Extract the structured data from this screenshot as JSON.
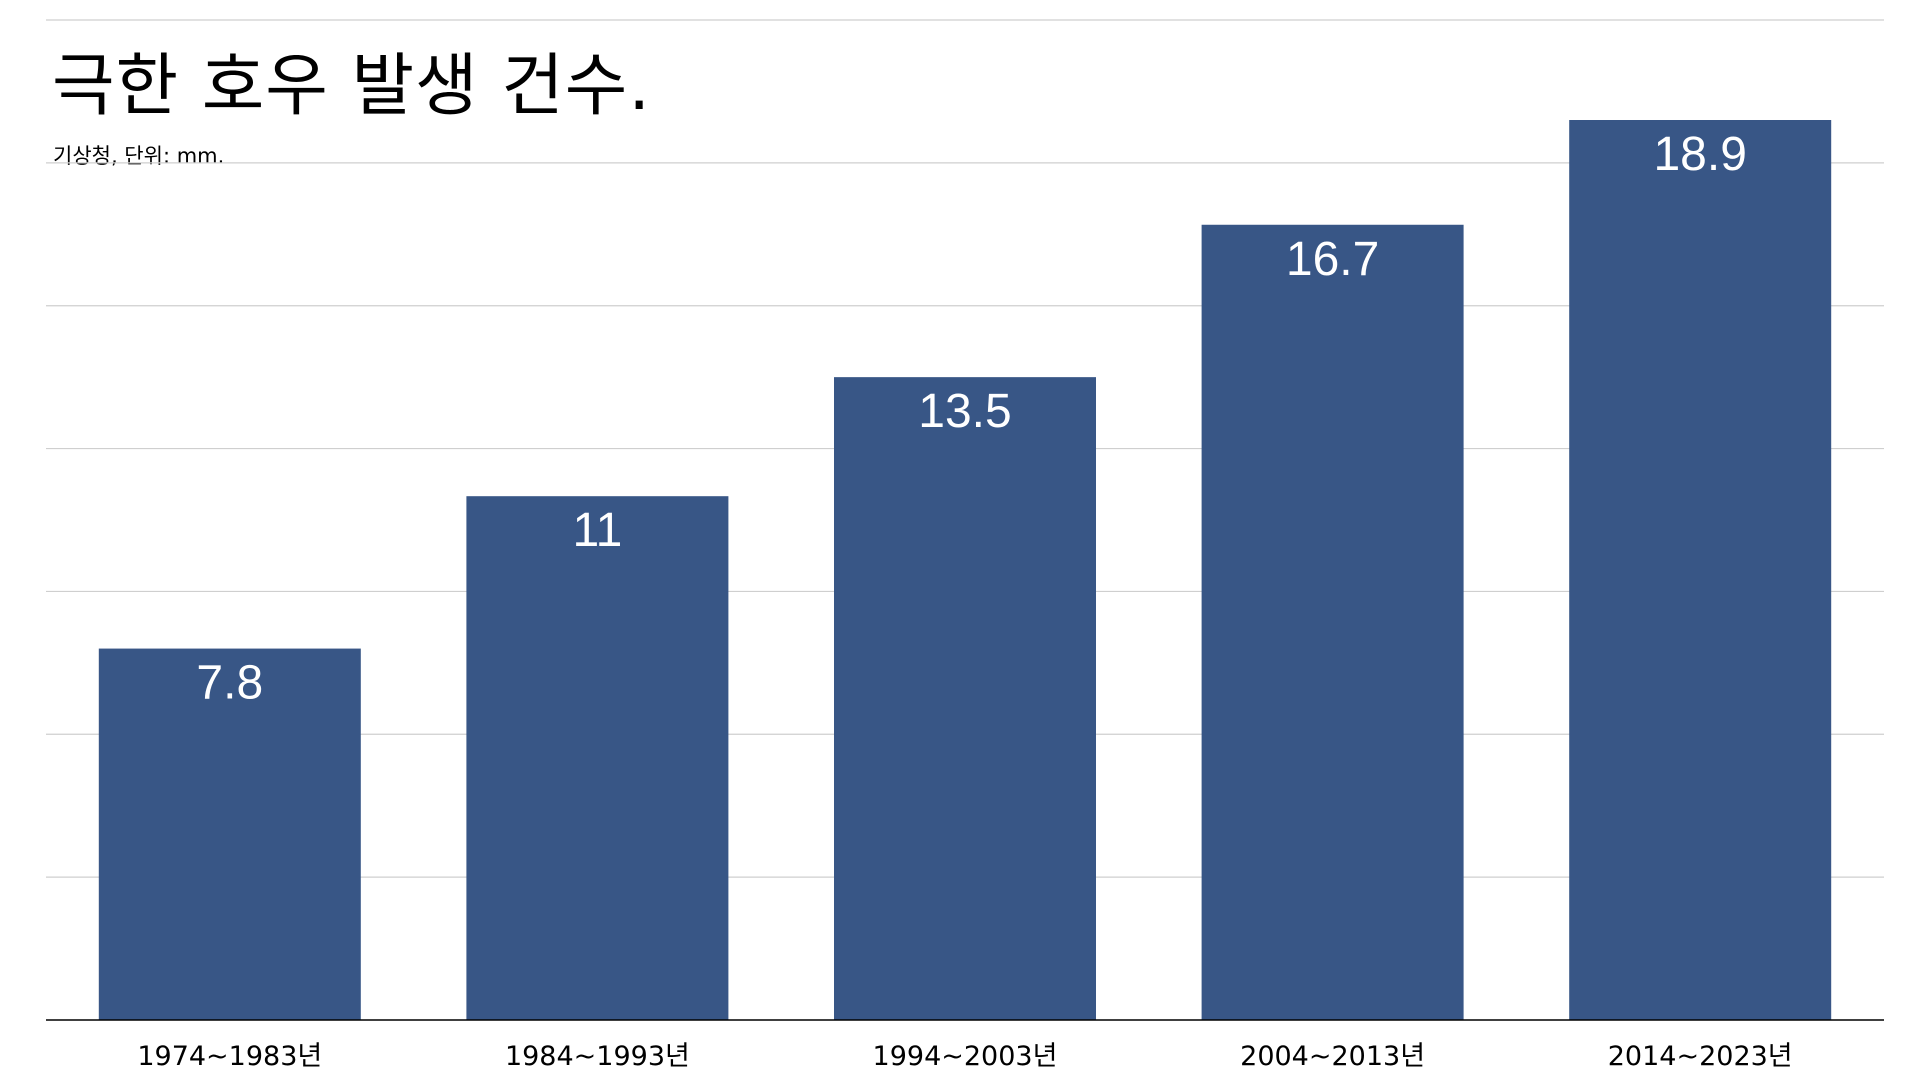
{
  "title": "극한 호우 발생 건수.",
  "subtitle": "기상청, 단위: mm.",
  "colors": {
    "bar": "#385686",
    "gridline": "#cfcfcf",
    "baseline": "#000000",
    "value_label": "#ffffff",
    "text": "#000000"
  },
  "chart_data": {
    "type": "bar",
    "title": "극한 호우 발생 건수.",
    "subtitle": "기상청, 단위: mm.",
    "xlabel": "",
    "ylabel": "",
    "categories": [
      "1974~1983년",
      "1984~1993년",
      "1994~2003년",
      "2004~2013년",
      "2014~2023년"
    ],
    "values": [
      7.8,
      11,
      13.5,
      16.7,
      18.9
    ],
    "value_labels": [
      "7.8",
      "11",
      "13.5",
      "16.7",
      "18.9"
    ],
    "ylim": [
      0,
      21
    ],
    "ytick_step": 3,
    "show_ytick_labels": false,
    "grid": true,
    "legend": "none"
  }
}
